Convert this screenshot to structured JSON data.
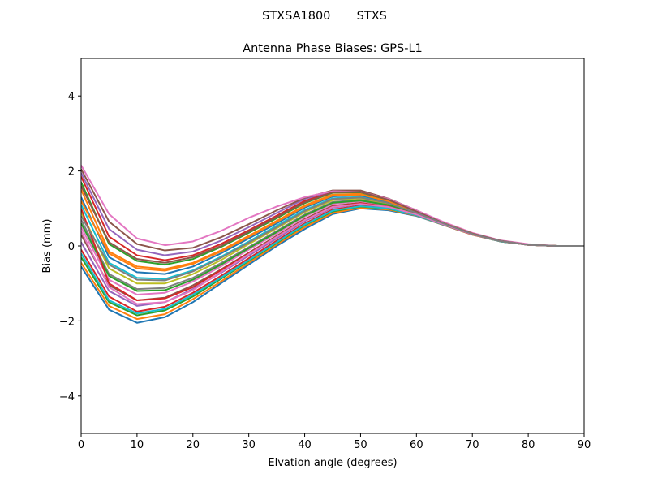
{
  "figure": {
    "suptitle": "STXSA1800       STXS"
  },
  "chart_data": {
    "type": "line",
    "title": "Antenna Phase Biases: GPS-L1",
    "xlabel": "Elvation angle (degrees)",
    "ylabel": "Bias (mm)",
    "xlim": [
      0,
      90
    ],
    "ylim": [
      -5,
      5
    ],
    "xticks": [
      0,
      10,
      20,
      30,
      40,
      50,
      60,
      70,
      80,
      90
    ],
    "yticks": [
      -4,
      -2,
      0,
      2,
      4
    ],
    "grid": false,
    "legend": "none",
    "x": [
      0,
      5,
      10,
      15,
      20,
      25,
      30,
      35,
      40,
      45,
      50,
      55,
      60,
      65,
      70,
      75,
      80,
      85,
      90
    ],
    "series": [
      {
        "color": "#1f77b4",
        "values": [
          -0.55,
          -1.7,
          -2.05,
          -1.9,
          -1.5,
          -1.0,
          -0.5,
          0.0,
          0.45,
          0.85,
          1.0,
          0.95,
          0.8,
          0.55,
          0.3,
          0.12,
          0.03,
          0.0,
          0.0
        ]
      },
      {
        "color": "#ff7f0e",
        "values": [
          -0.45,
          -1.6,
          -1.95,
          -1.82,
          -1.42,
          -0.95,
          -0.45,
          0.04,
          0.5,
          0.88,
          1.02,
          0.97,
          0.81,
          0.55,
          0.3,
          0.12,
          0.03,
          0.0,
          0.0
        ]
      },
      {
        "color": "#2ca02c",
        "values": [
          -0.3,
          -1.5,
          -1.85,
          -1.72,
          -1.35,
          -0.88,
          -0.4,
          0.08,
          0.55,
          0.92,
          1.05,
          0.99,
          0.82,
          0.56,
          0.31,
          0.12,
          0.03,
          0.0,
          0.0
        ]
      },
      {
        "color": "#d62728",
        "values": [
          -0.1,
          -1.35,
          -1.75,
          -1.62,
          -1.25,
          -0.8,
          -0.33,
          0.14,
          0.6,
          0.97,
          1.08,
          1.01,
          0.83,
          0.56,
          0.31,
          0.13,
          0.03,
          0.0,
          0.0
        ]
      },
      {
        "color": "#9467bd",
        "values": [
          0.1,
          -1.2,
          -1.6,
          -1.5,
          -1.15,
          -0.72,
          -0.26,
          0.2,
          0.66,
          1.02,
          1.12,
          1.03,
          0.84,
          0.57,
          0.31,
          0.13,
          0.03,
          0.0,
          0.0
        ]
      },
      {
        "color": "#8c564b",
        "values": [
          0.3,
          -1.05,
          -1.45,
          -1.38,
          -1.05,
          -0.63,
          -0.18,
          0.27,
          0.72,
          1.07,
          1.15,
          1.05,
          0.85,
          0.57,
          0.31,
          0.13,
          0.03,
          0.0,
          0.0
        ]
      },
      {
        "color": "#e377c2",
        "values": [
          0.5,
          -0.9,
          -1.3,
          -1.25,
          -0.95,
          -0.55,
          -0.1,
          0.33,
          0.78,
          1.12,
          1.19,
          1.08,
          0.86,
          0.58,
          0.32,
          0.13,
          0.03,
          0.0,
          0.0
        ]
      },
      {
        "color": "#7f7f7f",
        "values": [
          0.7,
          -0.75,
          -1.15,
          -1.12,
          -0.85,
          -0.46,
          -0.03,
          0.4,
          0.84,
          1.17,
          1.23,
          1.1,
          0.87,
          0.58,
          0.32,
          0.13,
          0.03,
          0.0,
          0.0
        ]
      },
      {
        "color": "#bcbd22",
        "values": [
          0.9,
          -0.6,
          -1.0,
          -1.0,
          -0.75,
          -0.38,
          0.05,
          0.47,
          0.9,
          1.22,
          1.27,
          1.13,
          0.88,
          0.59,
          0.32,
          0.13,
          0.03,
          0.0,
          0.0
        ]
      },
      {
        "color": "#17becf",
        "values": [
          1.1,
          -0.45,
          -0.85,
          -0.88,
          -0.65,
          -0.29,
          0.12,
          0.54,
          0.96,
          1.27,
          1.31,
          1.15,
          0.89,
          0.59,
          0.32,
          0.13,
          0.03,
          0.0,
          0.0
        ]
      },
      {
        "color": "#1f77b4",
        "values": [
          1.3,
          -0.3,
          -0.7,
          -0.75,
          -0.55,
          -0.2,
          0.2,
          0.6,
          1.02,
          1.32,
          1.35,
          1.18,
          0.9,
          0.6,
          0.33,
          0.13,
          0.03,
          0.0,
          0.0
        ]
      },
      {
        "color": "#ff7f0e",
        "values": [
          1.5,
          -0.15,
          -0.55,
          -0.62,
          -0.45,
          -0.12,
          0.27,
          0.67,
          1.08,
          1.37,
          1.39,
          1.2,
          0.91,
          0.6,
          0.33,
          0.13,
          0.03,
          0.0,
          0.0
        ]
      },
      {
        "color": "#2ca02c",
        "values": [
          1.7,
          0.05,
          -0.4,
          -0.5,
          -0.35,
          -0.03,
          0.35,
          0.74,
          1.14,
          1.42,
          1.43,
          1.22,
          0.92,
          0.6,
          0.33,
          0.14,
          0.03,
          0.0,
          0.0
        ]
      },
      {
        "color": "#d62728",
        "values": [
          1.85,
          0.25,
          -0.25,
          -0.38,
          -0.25,
          0.05,
          0.42,
          0.81,
          1.2,
          1.45,
          1.45,
          1.24,
          0.93,
          0.61,
          0.33,
          0.14,
          0.03,
          0.0,
          0.0
        ]
      },
      {
        "color": "#9467bd",
        "values": [
          1.95,
          0.45,
          -0.1,
          -0.25,
          -0.15,
          0.14,
          0.5,
          0.88,
          1.25,
          1.47,
          1.47,
          1.25,
          0.94,
          0.61,
          0.33,
          0.14,
          0.03,
          0.0,
          0.0
        ]
      },
      {
        "color": "#8c564b",
        "values": [
          2.05,
          0.65,
          0.05,
          -0.12,
          -0.05,
          0.23,
          0.58,
          0.95,
          1.28,
          1.48,
          1.48,
          1.26,
          0.95,
          0.62,
          0.34,
          0.14,
          0.04,
          0.0,
          0.0
        ]
      },
      {
        "color": "#e377c2",
        "values": [
          2.15,
          0.85,
          0.2,
          0.02,
          0.12,
          0.4,
          0.75,
          1.05,
          1.3,
          1.46,
          1.44,
          1.25,
          0.95,
          0.63,
          0.35,
          0.15,
          0.05,
          0.0,
          0.0
        ]
      },
      {
        "color": "#17becf",
        "values": [
          -0.2,
          -1.45,
          -1.8,
          -1.68,
          -1.3,
          -0.85,
          -0.38,
          0.1,
          0.57,
          0.94,
          1.06,
          1.0,
          0.82,
          0.56,
          0.31,
          0.12,
          0.03,
          0.0,
          0.0
        ]
      },
      {
        "color": "#2ca02c",
        "values": [
          0.6,
          -0.8,
          -1.2,
          -1.18,
          -0.9,
          -0.5,
          -0.06,
          0.37,
          0.81,
          1.15,
          1.21,
          1.09,
          0.86,
          0.58,
          0.32,
          0.13,
          0.03,
          0.0,
          0.0
        ]
      },
      {
        "color": "#d62728",
        "values": [
          1.0,
          -1.0,
          -1.45,
          -1.4,
          -1.1,
          -0.65,
          -0.2,
          0.25,
          0.7,
          1.05,
          1.14,
          1.05,
          0.84,
          0.57,
          0.31,
          0.13,
          0.03,
          0.0,
          0.0
        ]
      },
      {
        "color": "#ff7f0e",
        "values": [
          1.2,
          -0.2,
          -0.6,
          -0.66,
          -0.48,
          -0.15,
          0.24,
          0.64,
          1.05,
          1.34,
          1.37,
          1.19,
          0.9,
          0.6,
          0.33,
          0.13,
          0.03,
          0.0,
          0.0
        ]
      },
      {
        "color": "#8c564b",
        "values": [
          1.6,
          0.1,
          -0.35,
          -0.45,
          -0.3,
          0.0,
          0.38,
          0.77,
          1.16,
          1.43,
          1.44,
          1.23,
          0.92,
          0.6,
          0.33,
          0.14,
          0.03,
          0.0,
          0.0
        ]
      },
      {
        "color": "#e377c2",
        "values": [
          0.4,
          -1.1,
          -1.55,
          -1.5,
          -1.18,
          -0.7,
          -0.22,
          0.24,
          0.69,
          1.04,
          1.12,
          1.04,
          0.84,
          0.57,
          0.31,
          0.13,
          0.03,
          0.0,
          0.0
        ]
      },
      {
        "color": "#7f7f7f",
        "values": [
          0.8,
          -0.5,
          -0.9,
          -0.92,
          -0.68,
          -0.32,
          0.09,
          0.5,
          0.93,
          1.25,
          1.29,
          1.14,
          0.88,
          0.59,
          0.32,
          0.13,
          0.03,
          0.0,
          0.0
        ]
      }
    ]
  }
}
